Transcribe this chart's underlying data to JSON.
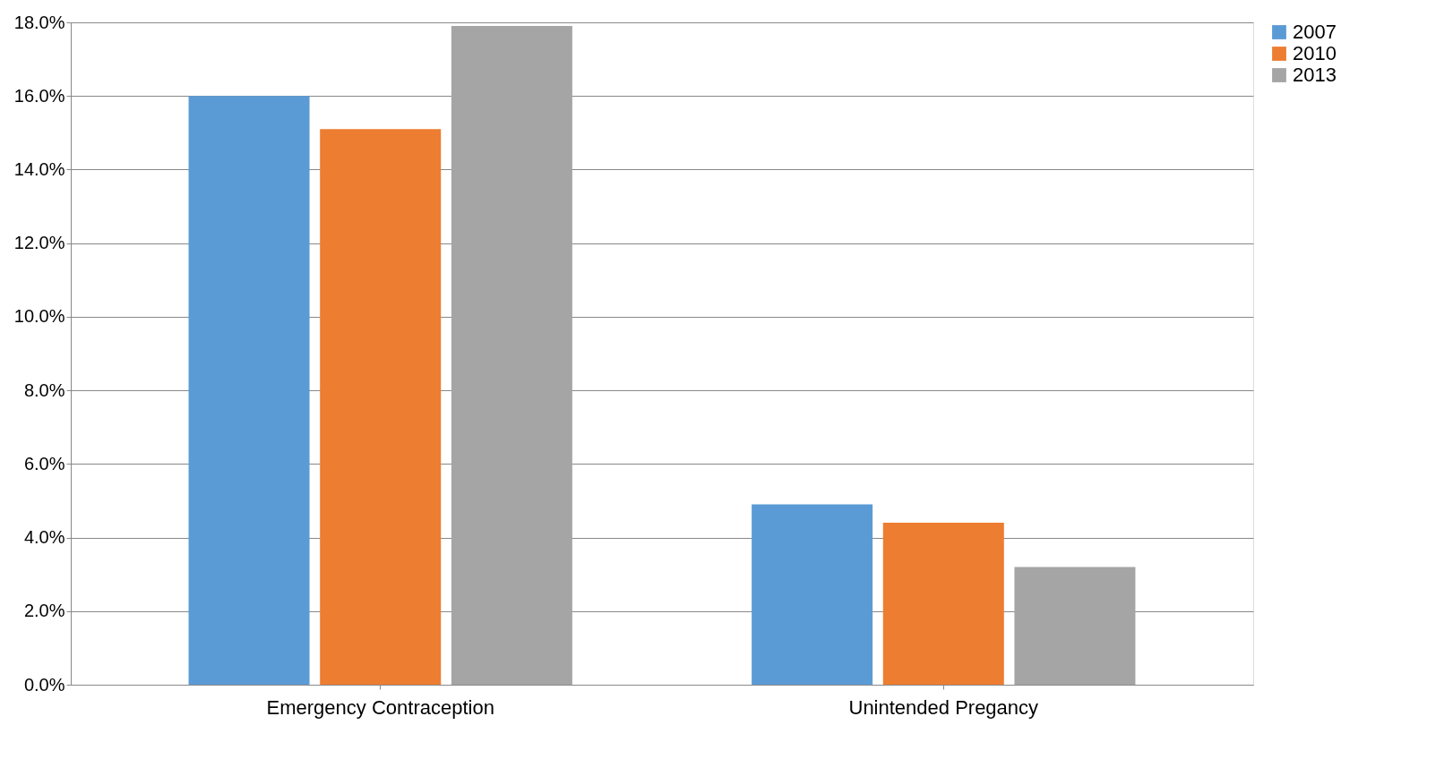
{
  "chart_data": {
    "type": "bar",
    "categories": [
      "Emergency Contraception",
      "Unintended Pregancy"
    ],
    "series": [
      {
        "name": "2007",
        "color": "#5b9bd5",
        "values": [
          16.0,
          4.9
        ]
      },
      {
        "name": "2010",
        "color": "#ed7d31",
        "values": [
          15.1,
          4.4
        ]
      },
      {
        "name": "2013",
        "color": "#a5a5a5",
        "values": [
          17.9,
          3.2
        ]
      }
    ],
    "ylim": [
      0,
      18
    ],
    "yticks": [
      {
        "value": 0,
        "label": "0.0%"
      },
      {
        "value": 2,
        "label": "2.0%"
      },
      {
        "value": 4,
        "label": "4.0%"
      },
      {
        "value": 6,
        "label": "6.0%"
      },
      {
        "value": 8,
        "label": "8.0%"
      },
      {
        "value": 10,
        "label": "10.0%"
      },
      {
        "value": 12,
        "label": "12.0%"
      },
      {
        "value": 14,
        "label": "14.0%"
      },
      {
        "value": 16,
        "label": "16.0%"
      },
      {
        "value": 18,
        "label": "18.0%"
      }
    ],
    "grid": "y",
    "legend": "right"
  }
}
